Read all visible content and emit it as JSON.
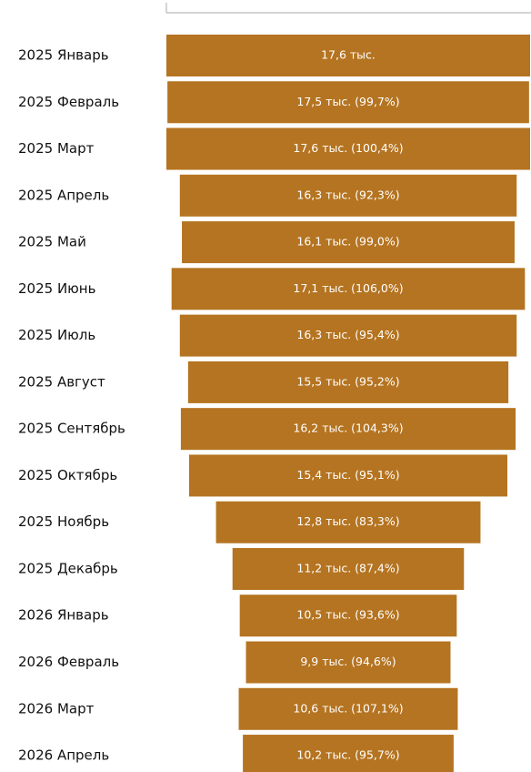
{
  "chart_data": {
    "type": "funnel",
    "color": "#b57421",
    "categories": [
      "2025 Январь",
      "2025 Февраль",
      "2025 Март",
      "2025 Апрель",
      "2025 Май",
      "2025 Июнь",
      "2025 Июль",
      "2025 Август",
      "2025 Сентябрь",
      "2025 Октябрь",
      "2025 Ноябрь",
      "2025 Декабрь",
      "2026 Январь",
      "2026 Февраль",
      "2026 Март",
      "2026 Апрель"
    ],
    "values": [
      17.6,
      17.5,
      17.6,
      16.3,
      16.1,
      17.1,
      16.3,
      15.5,
      16.2,
      15.4,
      12.8,
      11.2,
      10.5,
      9.9,
      10.6,
      10.2
    ],
    "value_labels": [
      "17,6 тыс.",
      "17,5 тыс. (99,7%)",
      "17,6 тыс. (100,4%)",
      "16,3 тыс. (92,3%)",
      "16,1 тыс. (99,0%)",
      "17,1 тыс. (106,0%)",
      "16,3 тыс. (95,4%)",
      "15,5 тыс. (95,2%)",
      "16,2 тыс. (104,3%)",
      "15,4 тыс. (95,1%)",
      "12,8 тыс. (83,3%)",
      "11,2 тыс. (87,4%)",
      "10,5 тыс. (93,6%)",
      "9,9 тыс. (94,6%)",
      "10,6 тыс. (107,1%)",
      "10,2 тыс. (95,7%)"
    ]
  }
}
